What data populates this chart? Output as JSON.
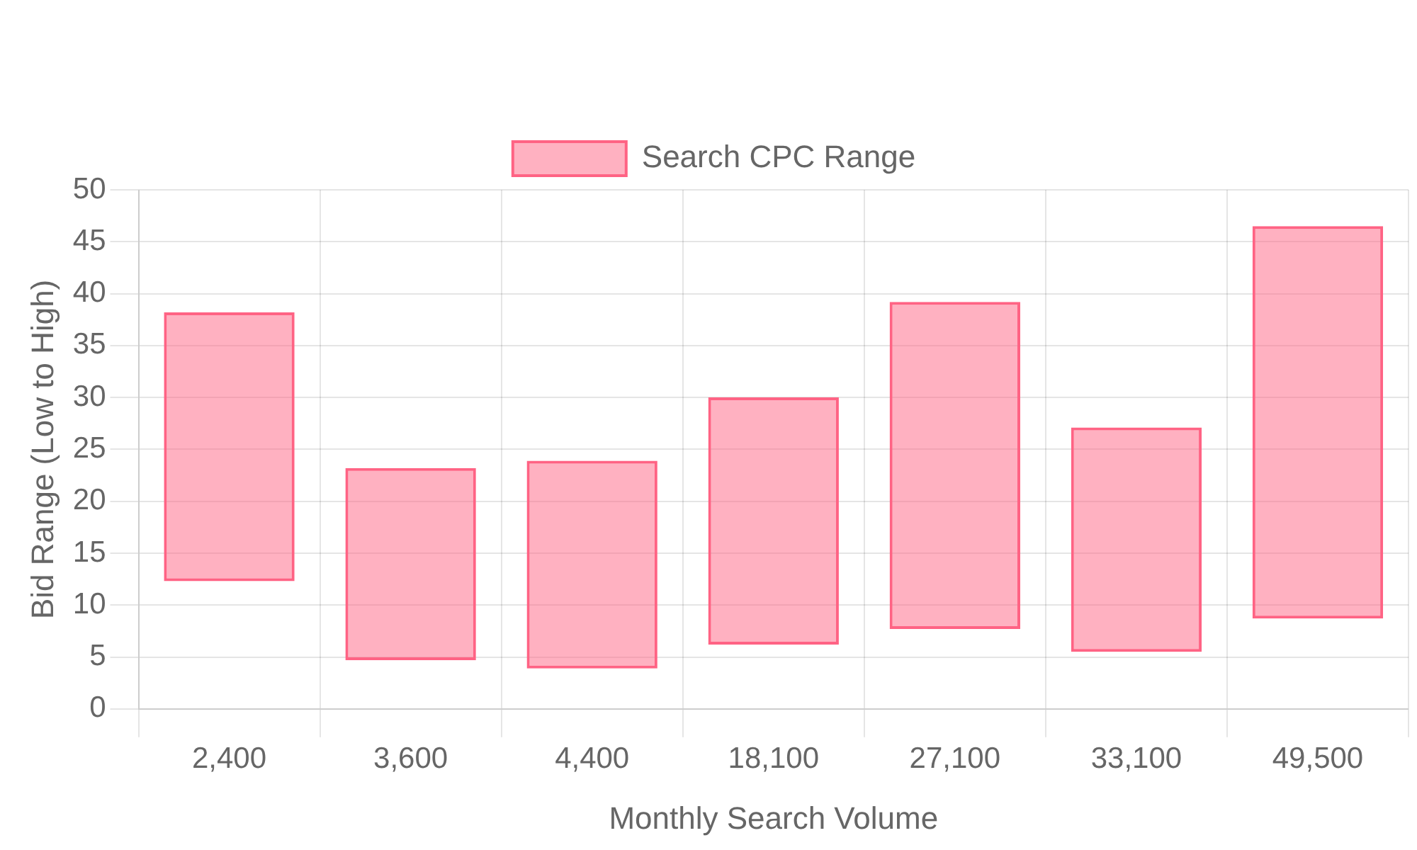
{
  "chart_data": {
    "type": "bar",
    "xlabel": "Monthly Search Volume",
    "ylabel": "Bid Range (Low to High)",
    "categories": [
      "2,400",
      "3,600",
      "4,400",
      "18,100",
      "27,100",
      "33,100",
      "49,500"
    ],
    "series": [
      {
        "name": "Search CPC Range",
        "color": "#ff6384",
        "base": [
          12.3,
          4.7,
          3.9,
          6.2,
          7.7,
          5.5,
          8.7
        ],
        "values": [
          25.9,
          18.5,
          20.0,
          23.8,
          31.5,
          21.6,
          37.8
        ]
      }
    ],
    "ylim": [
      0,
      50
    ],
    "yticks": [
      0,
      5,
      10,
      15,
      20,
      25,
      30,
      35,
      40,
      45,
      50
    ],
    "grid": true,
    "legend": "top"
  }
}
